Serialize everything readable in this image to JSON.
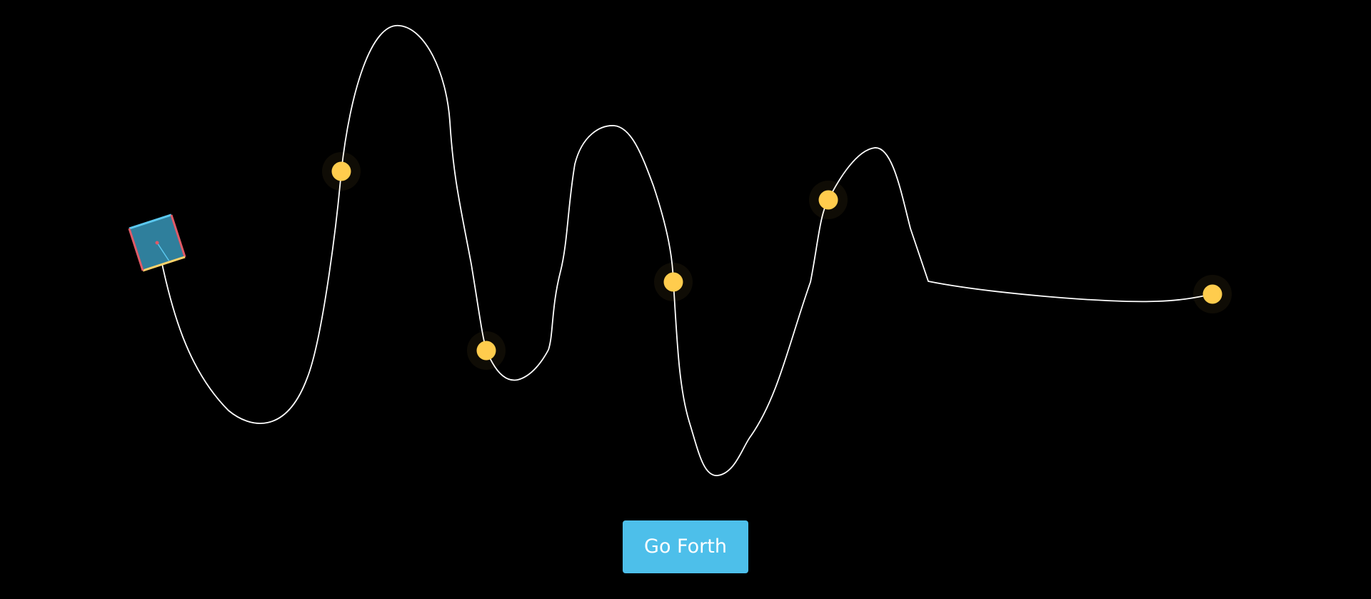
{
  "scene": {
    "background_color": "#000000",
    "path_color": "#ffffff",
    "waypoint_color": "#ffcc4d",
    "robot": {
      "fill_color": "#2f7f9c",
      "edge_colors": [
        "#5bc8ef",
        "#e05a67",
        "#ffd36b",
        "#e05a67"
      ],
      "heading_line_color": "#5bc8ef",
      "center_dot_color": "#e05a67"
    },
    "waypoint_count": 6
  },
  "controls": {
    "go_button_label": "Go Forth",
    "go_button_color": "#4dbfea"
  }
}
